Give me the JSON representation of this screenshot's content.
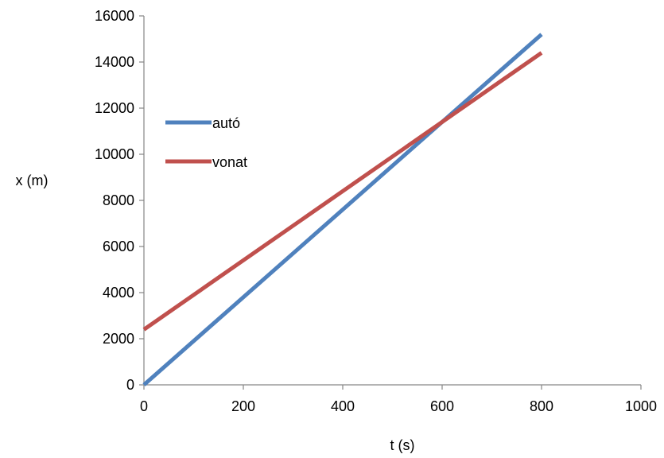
{
  "chart_data": {
    "type": "line",
    "title": "",
    "xlabel": "t (s)",
    "ylabel": "x (m)",
    "xlim": [
      0,
      1000
    ],
    "ylim": [
      0,
      16000
    ],
    "xticks": [
      0,
      200,
      400,
      600,
      800,
      1000
    ],
    "yticks": [
      0,
      2000,
      4000,
      6000,
      8000,
      10000,
      12000,
      14000,
      16000
    ],
    "grid": false,
    "legend_position": "upper-left",
    "series": [
      {
        "name": "autó",
        "color": "#4f81bd",
        "x": [
          0,
          800
        ],
        "y": [
          0,
          15200
        ]
      },
      {
        "name": "vonat",
        "color": "#c0504d",
        "x": [
          0,
          800
        ],
        "y": [
          2400,
          14400
        ]
      }
    ]
  }
}
